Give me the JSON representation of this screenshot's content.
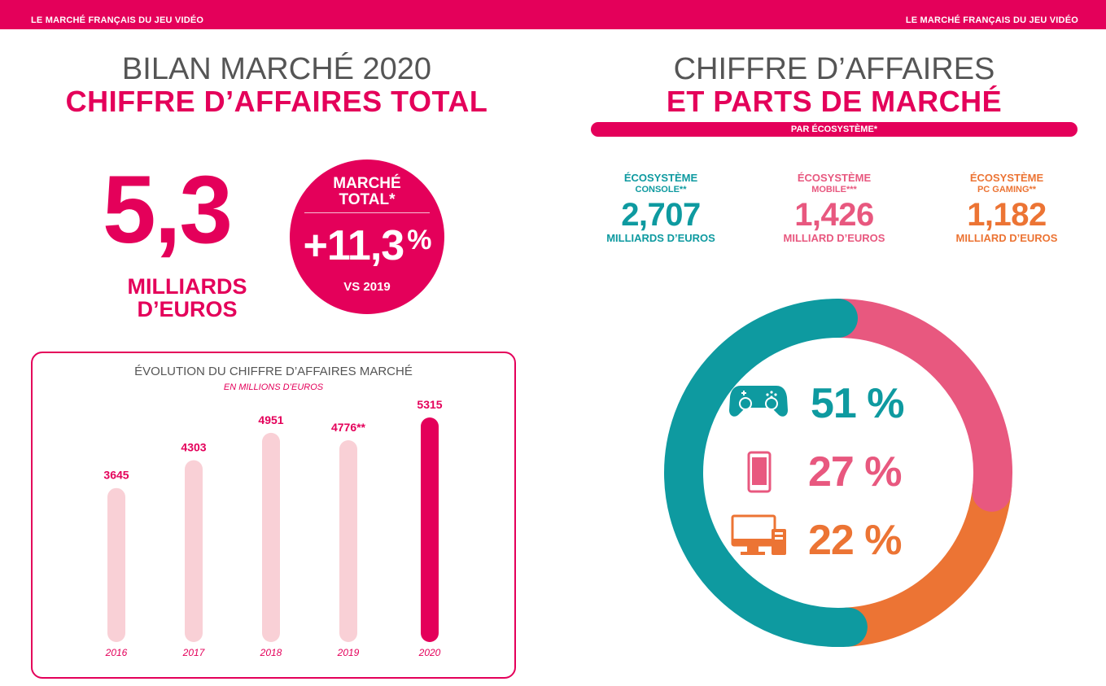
{
  "header": {
    "left": "LE MARCHÉ FRANÇAIS DU JEU VIDÉO",
    "right": "LE MARCHÉ FRANÇAIS DU JEU VIDÉO"
  },
  "left_page": {
    "title_line1": "BILAN MARCHÉ 2020",
    "title_line2": "CHIFFRE D’AFFAIRES TOTAL",
    "big_value": "5,3",
    "big_unit_line1": "MILLIARDS",
    "big_unit_line2": "D’EUROS",
    "circle": {
      "line1": "MARCHÉ",
      "line2": "TOTAL*",
      "value": "+11,3",
      "percent": "%",
      "vs": "VS 2019"
    },
    "chart_title": "ÉVOLUTION DU CHIFFRE D’AFFAIRES MARCHÉ",
    "chart_subtitle": "EN MILLIONS D’EUROS"
  },
  "right_page": {
    "title_line1": "CHIFFRE D’AFFAIRES",
    "title_line2": "ET PARTS DE MARCHÉ",
    "pill": "PAR ÉCOSYSTÈME*",
    "ecosystems": [
      {
        "label1": "ÉCOSYSTÈME",
        "label2": "CONSOLE**",
        "value": "2,707",
        "unit": "MILLIARDS D’EUROS"
      },
      {
        "label1": "ÉCOSYSTÈME",
        "label2": "MOBILE***",
        "value": "1,426",
        "unit": "MILLIARD D’EUROS"
      },
      {
        "label1": "ÉCOSYSTÈME",
        "label2": "PC GAMING**",
        "value": "1,182",
        "unit": "MILLIARD D’EUROS"
      }
    ],
    "shares": [
      "51 %",
      "27 %",
      "22 %"
    ]
  },
  "colors": {
    "brand": "#e4005a",
    "bar_light": "#f9d0d6",
    "console": "#0e9aa0",
    "mobile": "#e8587f",
    "pc": "#ec7434"
  },
  "icons": [
    "gamepad-icon",
    "smartphone-icon",
    "computer-icon"
  ],
  "chart_data": [
    {
      "type": "bar",
      "title": "ÉVOLUTION DU CHIFFRE D’AFFAIRES MARCHÉ",
      "subtitle": "EN MILLIONS D’EUROS",
      "categories": [
        "2016",
        "2017",
        "2018",
        "2019",
        "2020"
      ],
      "values": [
        3645,
        4303,
        4951,
        4776,
        5315
      ],
      "value_labels": [
        "3645",
        "4303",
        "4951",
        "4776**",
        "5315"
      ],
      "highlight_index": 4,
      "ylim": [
        0,
        5315
      ]
    },
    {
      "type": "pie",
      "style": "donut",
      "categories": [
        "CONSOLE",
        "MOBILE",
        "PC GAMING"
      ],
      "values": [
        51,
        27,
        22
      ]
    }
  ]
}
